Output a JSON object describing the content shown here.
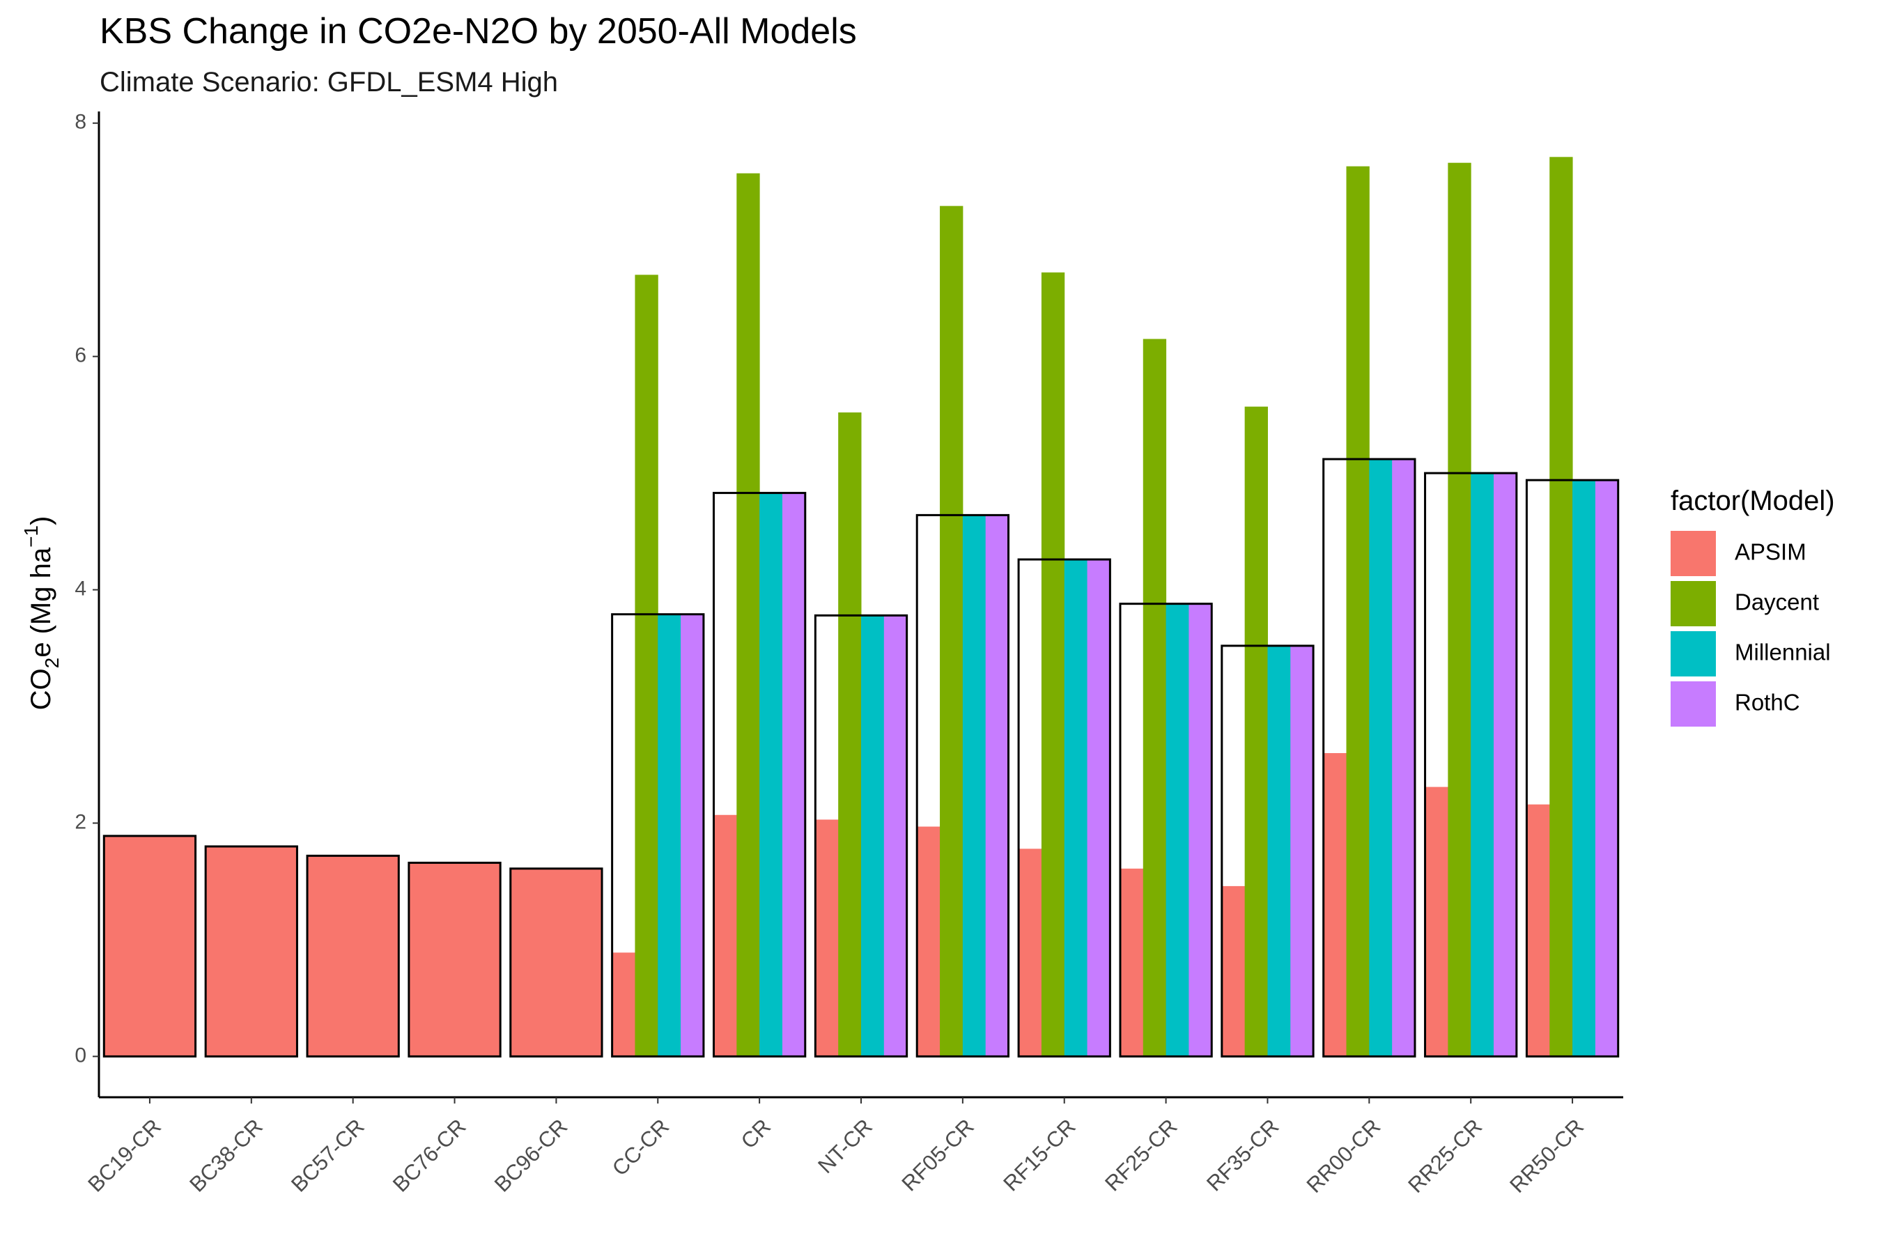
{
  "chart_data": {
    "type": "bar",
    "title": "KBS Change in CO2e-N2O by 2050-All Models",
    "subtitle": "Climate Scenario: GFDL_ESM4 High",
    "ylabel": {
      "main": "CO",
      "sub": "2",
      "rest": "e (Mg ha",
      "sup": "−1",
      "close": ")"
    },
    "xlabel": "",
    "ylim": [
      -0.35,
      8.1
    ],
    "yticks": [
      0,
      2,
      4,
      6,
      8
    ],
    "grid": false,
    "legend_position": "right",
    "legend_title": "factor(Model)",
    "categories": [
      "BC19-CR",
      "BC38-CR",
      "BC57-CR",
      "BC76-CR",
      "BC96-CR",
      "CC-CR",
      "CR",
      "NT-CR",
      "RF05-CR",
      "RF15-CR",
      "RF25-CR",
      "RF35-CR",
      "RR00-CR",
      "RR25-CR",
      "RR50-CR"
    ],
    "series": [
      {
        "name": "APSIM",
        "color": "#F8766D",
        "values": [
          1.89,
          1.8,
          1.72,
          1.66,
          1.61,
          0.89,
          2.07,
          2.03,
          1.97,
          1.78,
          1.61,
          1.46,
          2.6,
          2.31,
          2.16
        ]
      },
      {
        "name": "Daycent",
        "color": "#7CAE00",
        "values": [
          null,
          null,
          null,
          null,
          null,
          6.7,
          7.57,
          5.52,
          7.29,
          6.72,
          6.15,
          5.57,
          7.63,
          7.66,
          7.71
        ]
      },
      {
        "name": "Millennial",
        "color": "#00BFC4",
        "values": [
          null,
          null,
          null,
          null,
          null,
          3.79,
          4.83,
          3.78,
          4.64,
          4.26,
          3.88,
          3.52,
          5.12,
          5.0,
          4.94
        ]
      },
      {
        "name": "RothC",
        "color": "#C77CFF",
        "values": [
          null,
          null,
          null,
          null,
          null,
          3.79,
          4.83,
          3.78,
          4.64,
          4.26,
          3.88,
          3.52,
          5.12,
          5.0,
          4.94
        ]
      }
    ],
    "outline_values": [
      1.89,
      1.8,
      1.72,
      1.66,
      1.61,
      3.79,
      4.83,
      3.78,
      4.64,
      4.26,
      3.88,
      3.52,
      5.12,
      5.0,
      4.94
    ]
  }
}
